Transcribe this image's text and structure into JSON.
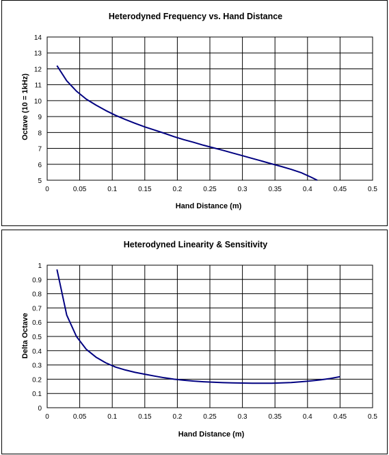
{
  "chart_data": [
    {
      "type": "line",
      "title": "Heterodyned Frequency vs. Hand Distance",
      "xlabel": "Hand Distance (m)",
      "ylabel": "Octave (10 = 1kHz)",
      "xlim": [
        0,
        0.5
      ],
      "ylim": [
        5,
        14
      ],
      "xticks": [
        "0",
        "0.05",
        "0.1",
        "0.15",
        "0.2",
        "0.25",
        "0.3",
        "0.35",
        "0.4",
        "0.45",
        "0.5"
      ],
      "yticks": [
        "5",
        "6",
        "7",
        "8",
        "9",
        "10",
        "11",
        "12",
        "13",
        "14"
      ],
      "grid": true,
      "line_color": "#000080",
      "series": [
        {
          "x": [
            0.015,
            0.03,
            0.045,
            0.06,
            0.075,
            0.09,
            0.105,
            0.12,
            0.135,
            0.15,
            0.165,
            0.18,
            0.195,
            0.21,
            0.225,
            0.24,
            0.255,
            0.27,
            0.285,
            0.3,
            0.315,
            0.33,
            0.345,
            0.36,
            0.375,
            0.39,
            0.405,
            0.415
          ],
          "y": [
            12.2,
            11.25,
            10.6,
            10.1,
            9.72,
            9.38,
            9.08,
            8.82,
            8.58,
            8.35,
            8.15,
            7.95,
            7.74,
            7.55,
            7.38,
            7.2,
            7.04,
            6.88,
            6.71,
            6.54,
            6.37,
            6.2,
            6.03,
            5.86,
            5.68,
            5.48,
            5.2,
            5.0
          ]
        }
      ]
    },
    {
      "type": "line",
      "title": "Heterodyned Linearity & Sensitivity",
      "xlabel": "Hand Distance (m)",
      "ylabel": "Delta Octave",
      "xlim": [
        0,
        0.5
      ],
      "ylim": [
        0,
        1
      ],
      "xticks": [
        "0",
        "0.05",
        "0.1",
        "0.15",
        "0.2",
        "0.25",
        "0.3",
        "0.35",
        "0.4",
        "0.45",
        "0.5"
      ],
      "yticks": [
        "0",
        "0.1",
        "0.2",
        "0.3",
        "0.4",
        "0.5",
        "0.6",
        "0.7",
        "0.8",
        "0.9",
        "1"
      ],
      "grid": true,
      "line_color": "#000080",
      "series": [
        {
          "x": [
            0.015,
            0.03,
            0.045,
            0.06,
            0.075,
            0.09,
            0.105,
            0.12,
            0.135,
            0.15,
            0.165,
            0.18,
            0.195,
            0.21,
            0.225,
            0.24,
            0.255,
            0.27,
            0.285,
            0.3,
            0.315,
            0.33,
            0.345,
            0.36,
            0.375,
            0.39,
            0.405,
            0.42,
            0.435,
            0.45
          ],
          "y": [
            0.97,
            0.65,
            0.5,
            0.41,
            0.355,
            0.315,
            0.285,
            0.265,
            0.248,
            0.235,
            0.222,
            0.21,
            0.2,
            0.193,
            0.187,
            0.182,
            0.179,
            0.176,
            0.174,
            0.173,
            0.172,
            0.172,
            0.172,
            0.174,
            0.177,
            0.182,
            0.188,
            0.195,
            0.205,
            0.218
          ]
        }
      ]
    }
  ]
}
